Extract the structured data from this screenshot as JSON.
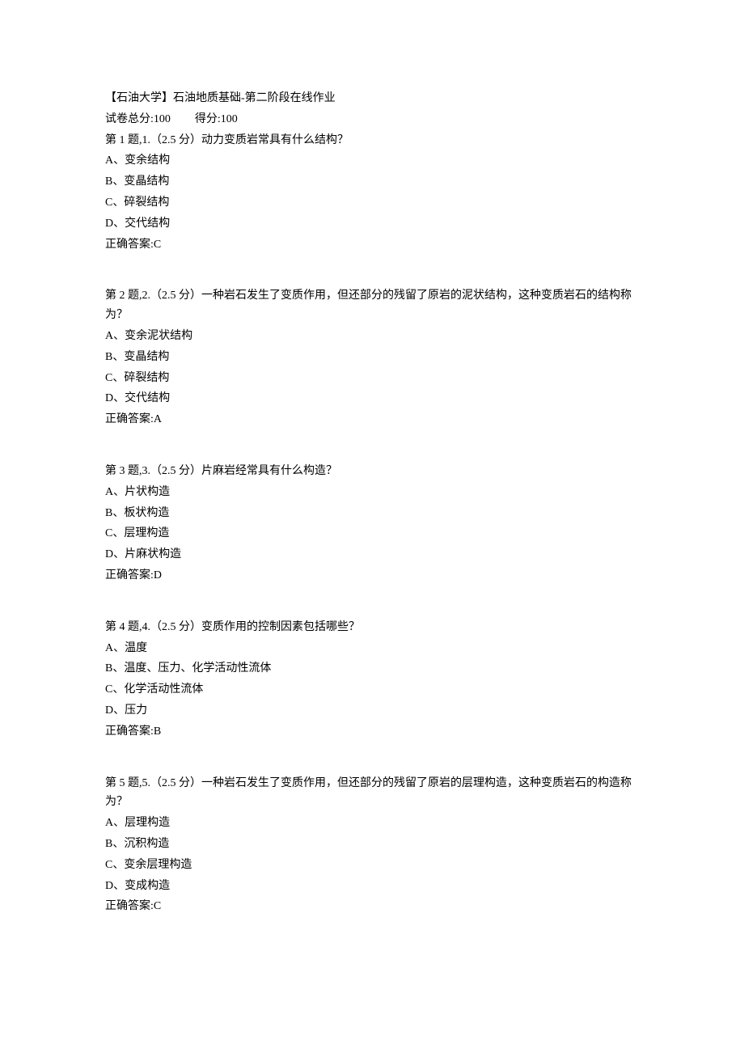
{
  "header": {
    "title": "【石油大学】石油地质基础-第二阶段在线作业",
    "total_label": "试卷总分:",
    "total_value": "100",
    "score_label": "得分:",
    "score_value": "100"
  },
  "questions": [
    {
      "prompt": "第 1 题,1.（2.5 分）动力变质岩常具有什么结构？",
      "options": [
        "A、变余结构",
        "B、变晶结构",
        "C、碎裂结构",
        "D、交代结构"
      ],
      "answer": "正确答案:C"
    },
    {
      "prompt": "第 2 题,2.（2.5 分）一种岩石发生了变质作用，但还部分的残留了原岩的泥状结构，这种变质岩石的结构称为？",
      "options": [
        "A、变余泥状结构",
        "B、变晶结构",
        "C、碎裂结构",
        "D、交代结构"
      ],
      "answer": "正确答案:A"
    },
    {
      "prompt": "第 3 题,3.（2.5 分）片麻岩经常具有什么构造？",
      "options": [
        "A、片状构造",
        "B、板状构造",
        "C、层理构造",
        "D、片麻状构造"
      ],
      "answer": "正确答案:D"
    },
    {
      "prompt": "第 4 题,4.（2.5 分）变质作用的控制因素包括哪些？",
      "options": [
        "A、温度",
        "B、温度、压力、化学活动性流体",
        "C、化学活动性流体",
        "D、压力"
      ],
      "answer": "正确答案:B"
    },
    {
      "prompt": "第 5 题,5.（2.5 分）一种岩石发生了变质作用，但还部分的残留了原岩的层理构造，这种变质岩石的构造称为？",
      "options": [
        "A、层理构造",
        "B、沉积构造",
        "C、变余层理构造",
        "D、变成构造"
      ],
      "answer": "正确答案:C"
    }
  ]
}
